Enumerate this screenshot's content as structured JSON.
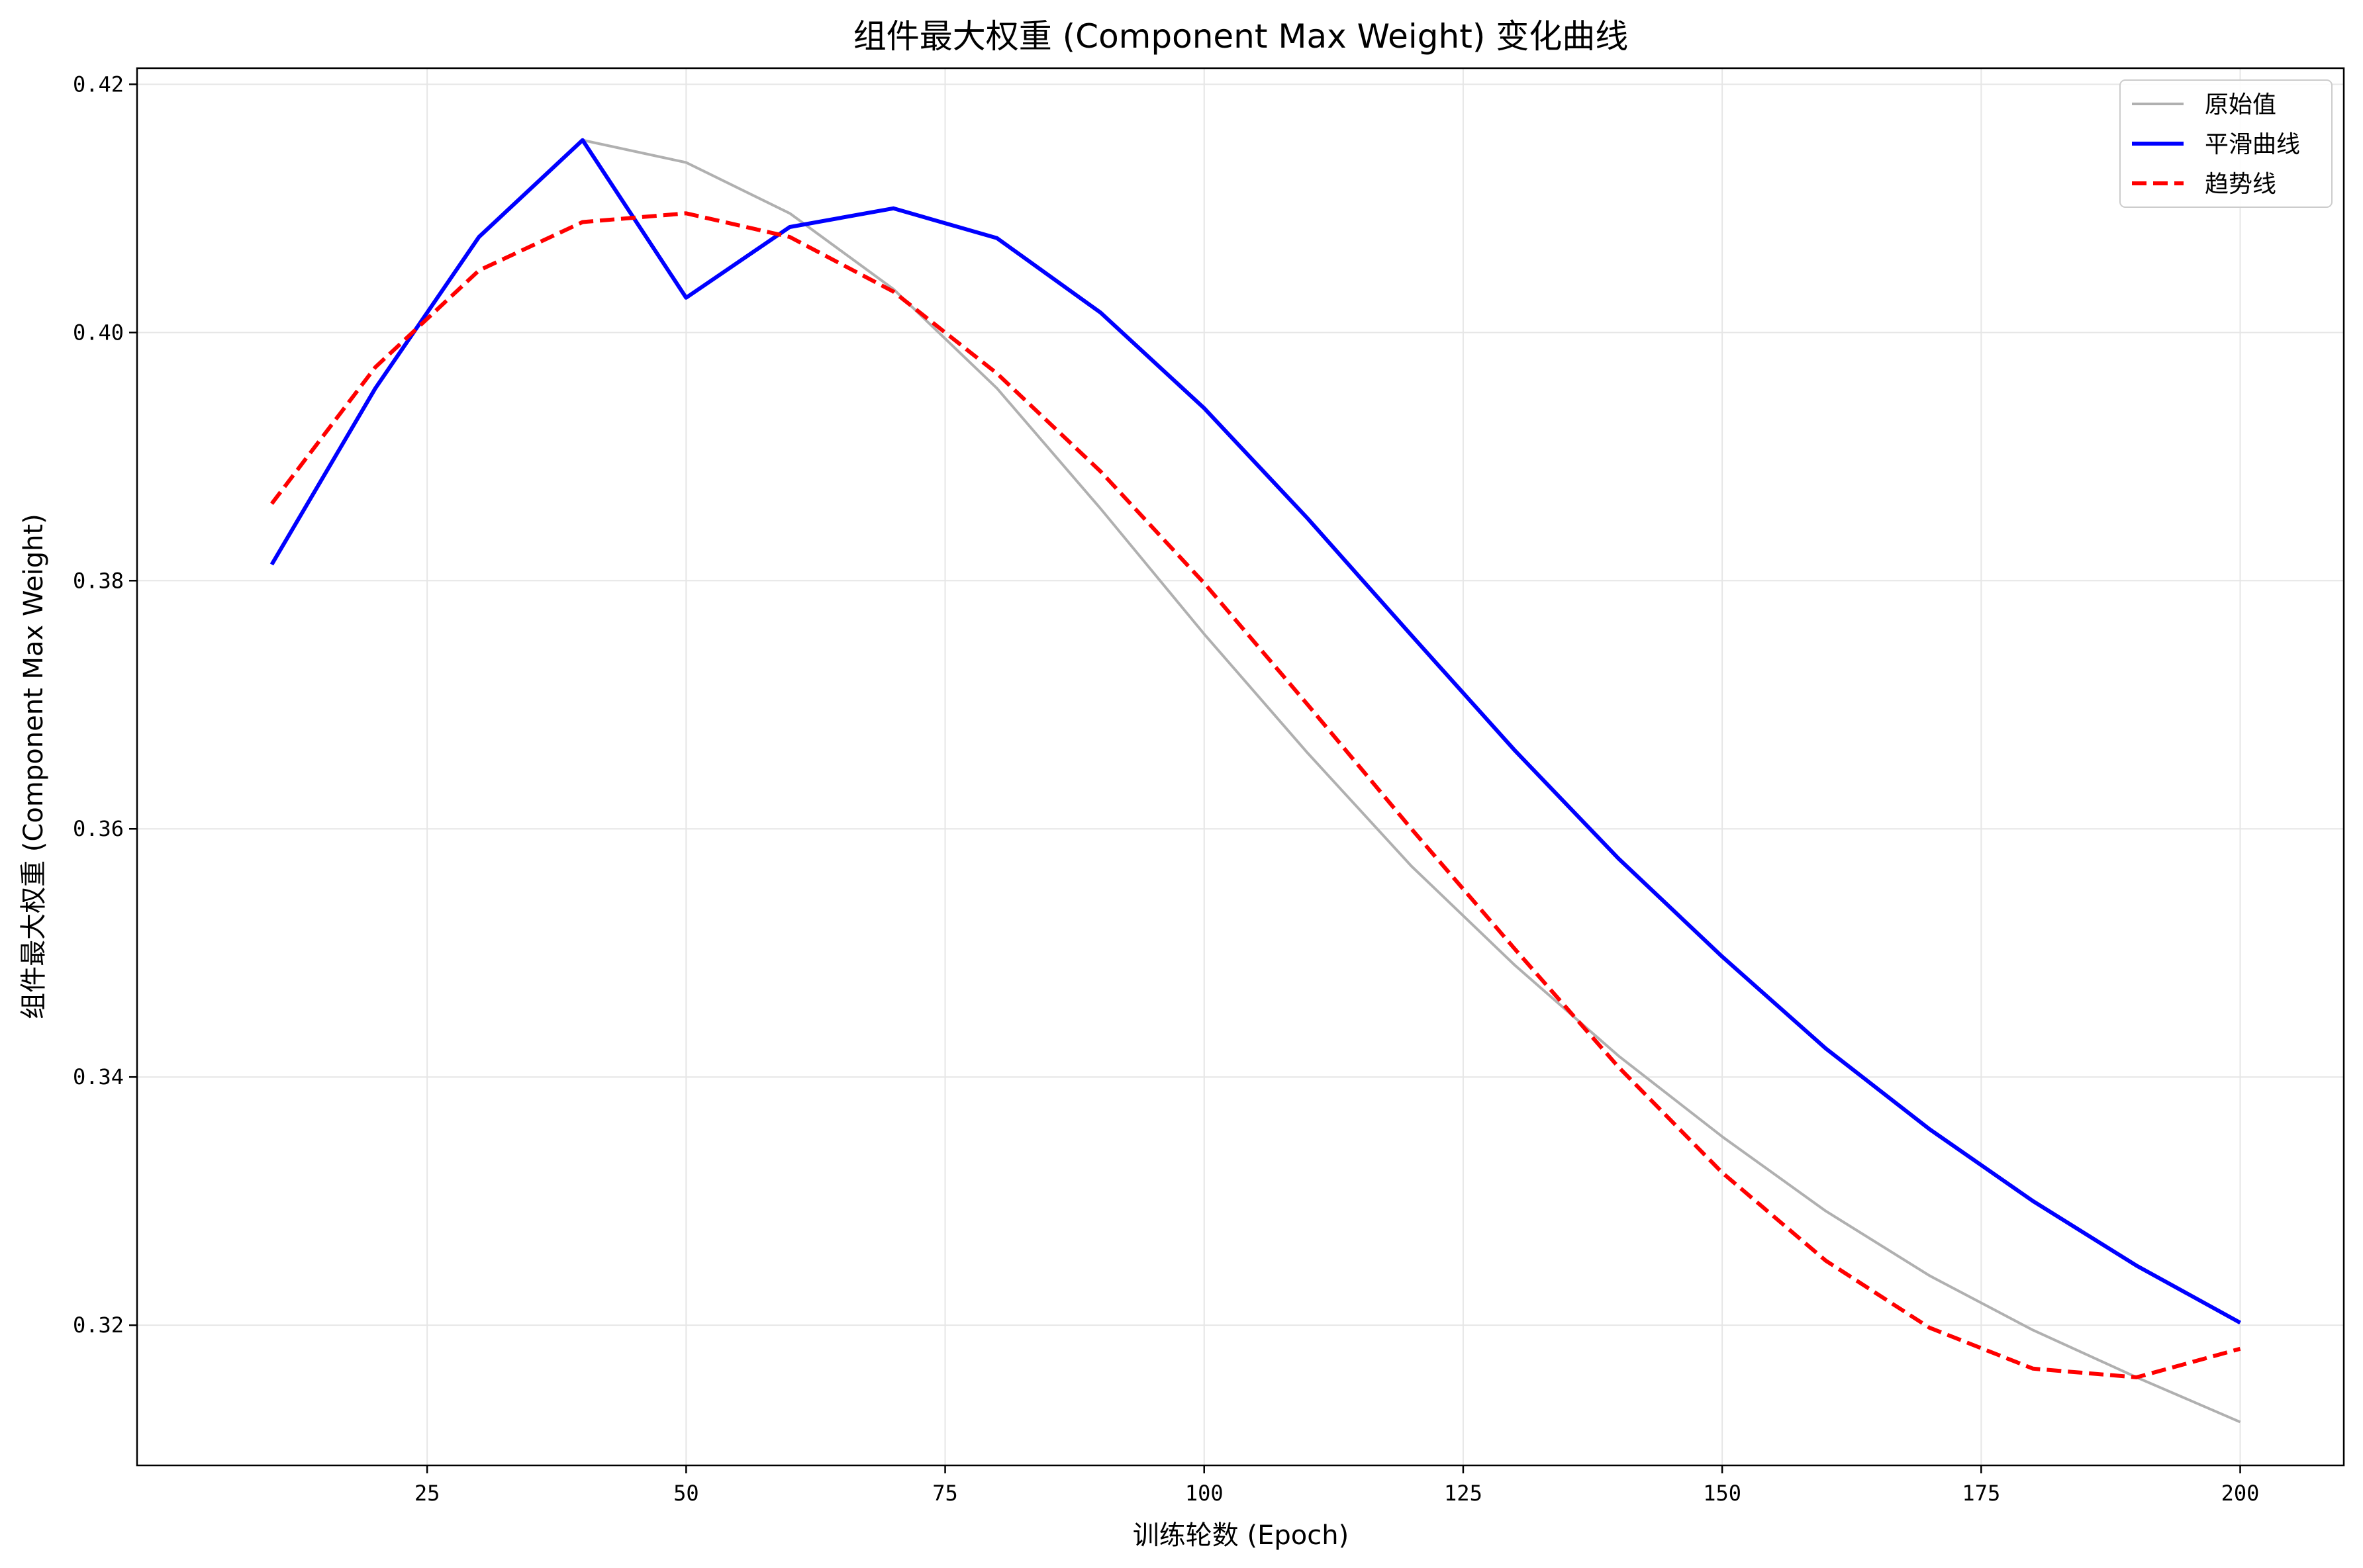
{
  "chart_data": {
    "type": "line",
    "title": "组件最大权重 (Component Max Weight) 变化曲线",
    "xlabel": "训练轮数 (Epoch)",
    "ylabel": "组件最大权重 (Component Max Weight)",
    "xlim": [
      -3,
      210
    ],
    "ylim": [
      0.3087,
      0.4213
    ],
    "xticks": [
      25,
      50,
      75,
      100,
      125,
      150,
      175,
      200
    ],
    "xtick_labels": [
      "25",
      "50",
      "75",
      "100",
      "125",
      "150",
      "175",
      "200"
    ],
    "yticks": [
      0.32,
      0.34,
      0.36,
      0.38,
      0.4,
      0.42
    ],
    "ytick_labels": [
      "0.32",
      "0.34",
      "0.36",
      "0.38",
      "0.40",
      "0.42"
    ],
    "grid": true,
    "legend_position": "top-right",
    "series": [
      {
        "name": "原始值",
        "color": "#b0b0b0",
        "style": "solid",
        "x": [
          40,
          50,
          60,
          70,
          80,
          90,
          100,
          110,
          120,
          130,
          140,
          150,
          160,
          170,
          180,
          190,
          200
        ],
        "y": [
          0.4155,
          0.4137,
          0.4096,
          0.4035,
          0.3955,
          0.3858,
          0.3757,
          0.3661,
          0.357,
          0.349,
          0.3417,
          0.3352,
          0.3292,
          0.324,
          0.3196,
          0.3158,
          0.3122
        ]
      },
      {
        "name": "平滑曲线",
        "color": "#0000ff",
        "style": "solid",
        "x": [
          10,
          20,
          30,
          40,
          50,
          60,
          70,
          80,
          90,
          100,
          110,
          120,
          130,
          140,
          150,
          160,
          170,
          180,
          190,
          200
        ],
        "y": [
          0.3813,
          0.3955,
          0.4077,
          0.4155,
          0.4028,
          0.4085,
          0.41,
          0.4076,
          0.4016,
          0.3939,
          0.385,
          0.3756,
          0.3663,
          0.3576,
          0.3497,
          0.3423,
          0.3358,
          0.33,
          0.3248,
          0.3202
        ]
      },
      {
        "name": "趋势线",
        "color": "#ff0000",
        "style": "dashed",
        "x": [
          10,
          20,
          30,
          40,
          50,
          60,
          70,
          80,
          90,
          100,
          110,
          120,
          130,
          140,
          150,
          160,
          170,
          180,
          190,
          200
        ],
        "y": [
          0.3862,
          0.3972,
          0.405,
          0.4089,
          0.4096,
          0.4077,
          0.4033,
          0.3967,
          0.3888,
          0.3798,
          0.37,
          0.36,
          0.3503,
          0.3408,
          0.3323,
          0.3252,
          0.3198,
          0.3165,
          0.3158,
          0.3181
        ]
      }
    ]
  }
}
